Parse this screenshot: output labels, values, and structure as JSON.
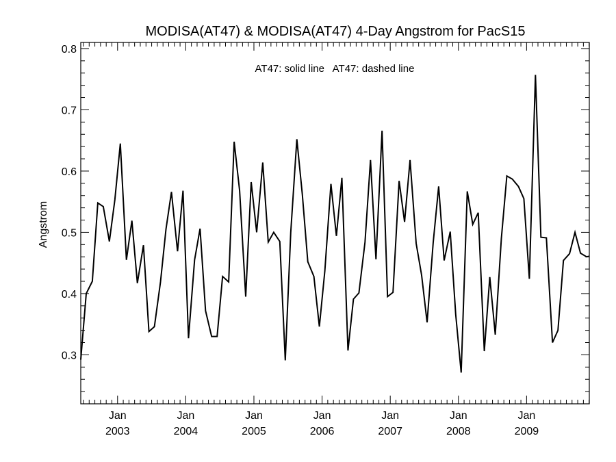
{
  "chart_data": {
    "type": "line",
    "title": "MODISA(AT47) & MODISA(AT47) 4-Day Angstrom for PacS15",
    "xlabel": "",
    "ylabel": "Angstrom",
    "ylim": [
      0.22,
      0.81
    ],
    "yticks": [
      "0.3",
      "0.4",
      "0.5",
      "0.6",
      "0.7",
      "0.8"
    ],
    "xlim": [
      2002.46,
      2009.92
    ],
    "xticks": [
      {
        "month": "Jan",
        "year": "2003"
      },
      {
        "month": "Jan",
        "year": "2004"
      },
      {
        "month": "Jan",
        "year": "2005"
      },
      {
        "month": "Jan",
        "year": "2006"
      },
      {
        "month": "Jan",
        "year": "2007"
      },
      {
        "month": "Jan",
        "year": "2008"
      },
      {
        "month": "Jan",
        "year": "2009"
      }
    ],
    "legend_text": "AT47: solid line   AT47: dashed line",
    "legend_position": "top-center",
    "grid": false,
    "series": [
      {
        "name": "AT47",
        "style": "solid",
        "color": "#000000",
        "x": [
          2002.46,
          2002.54,
          2002.63,
          2002.71,
          2002.79,
          2002.88,
          2002.96,
          2003.04,
          2003.13,
          2003.21,
          2003.29,
          2003.38,
          2003.46,
          2003.54,
          2003.63,
          2003.71,
          2003.79,
          2003.88,
          2003.96,
          2004.04,
          2004.13,
          2004.21,
          2004.29,
          2004.38,
          2004.46,
          2004.54,
          2004.63,
          2004.71,
          2004.79,
          2004.88,
          2004.96,
          2005.04,
          2005.13,
          2005.21,
          2005.29,
          2005.38,
          2005.46,
          2005.54,
          2005.63,
          2005.71,
          2005.79,
          2005.88,
          2005.96,
          2006.04,
          2006.13,
          2006.21,
          2006.29,
          2006.38,
          2006.46,
          2006.54,
          2006.63,
          2006.71,
          2006.79,
          2006.88,
          2006.96,
          2007.04,
          2007.13,
          2007.21,
          2007.29,
          2007.38,
          2007.46,
          2007.54,
          2007.63,
          2007.71,
          2007.79,
          2007.88,
          2007.96,
          2008.04,
          2008.13,
          2008.21,
          2008.29,
          2008.38,
          2008.46,
          2008.54,
          2008.63,
          2008.71,
          2008.79,
          2008.88,
          2008.96,
          2009.04,
          2009.13,
          2009.21,
          2009.29,
          2009.38,
          2009.46,
          2009.54,
          2009.63,
          2009.71,
          2009.79,
          2009.88,
          2009.92
        ],
        "y": [
          0.292,
          0.4,
          0.42,
          0.548,
          0.542,
          0.485,
          0.553,
          0.645,
          0.455,
          0.519,
          0.417,
          0.479,
          0.338,
          0.346,
          0.419,
          0.505,
          0.566,
          0.469,
          0.568,
          0.327,
          0.455,
          0.506,
          0.372,
          0.33,
          0.33,
          0.428,
          0.419,
          0.648,
          0.568,
          0.395,
          0.582,
          0.5,
          0.614,
          0.484,
          0.5,
          0.485,
          0.291,
          0.5,
          0.652,
          0.562,
          0.452,
          0.428,
          0.346,
          0.437,
          0.579,
          0.494,
          0.589,
          0.307,
          0.391,
          0.401,
          0.484,
          0.618,
          0.456,
          0.666,
          0.395,
          0.402,
          0.584,
          0.517,
          0.618,
          0.482,
          0.43,
          0.353,
          0.483,
          0.575,
          0.454,
          0.501,
          0.366,
          0.271,
          0.567,
          0.513,
          0.532,
          0.306,
          0.427,
          0.333,
          0.49,
          0.592,
          0.587,
          0.575,
          0.555,
          0.424,
          0.757,
          0.492,
          0.491,
          0.32,
          0.34,
          0.454,
          0.465,
          0.5,
          0.466,
          0.46,
          0.461
        ]
      }
    ]
  }
}
